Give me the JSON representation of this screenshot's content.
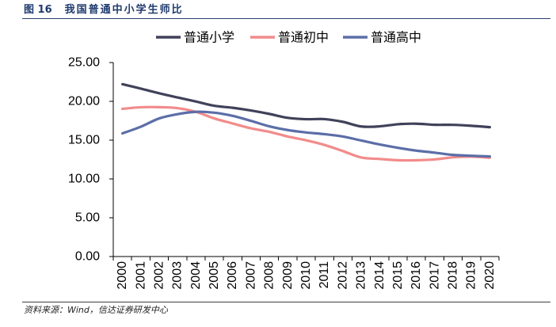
{
  "figure": {
    "number": "图 16",
    "title": "我国普通中小学生师比",
    "source": "资料来源：Wind，信达证券研发中心"
  },
  "chart_data": {
    "type": "line",
    "categories": [
      "2000",
      "2001",
      "2002",
      "2003",
      "2004",
      "2005",
      "2006",
      "2007",
      "2008",
      "2009",
      "2010",
      "2011",
      "2012",
      "2013",
      "2014",
      "2015",
      "2016",
      "2017",
      "2018",
      "2019",
      "2020"
    ],
    "series": [
      {
        "name": "普通小学",
        "color": "#40425A",
        "values": [
          22.21,
          21.64,
          21.04,
          20.5,
          19.98,
          19.43,
          19.17,
          18.82,
          18.38,
          17.88,
          17.7,
          17.71,
          17.36,
          16.76,
          16.78,
          17.05,
          17.12,
          16.98,
          16.97,
          16.85,
          16.67
        ]
      },
      {
        "name": "普通初中",
        "color": "#F28B8B",
        "values": [
          19.03,
          19.24,
          19.25,
          19.13,
          18.65,
          17.8,
          17.15,
          16.52,
          16.07,
          15.47,
          14.98,
          14.38,
          13.59,
          12.76,
          12.57,
          12.41,
          12.41,
          12.52,
          12.79,
          12.88,
          12.73
        ]
      },
      {
        "name": "普通高中",
        "color": "#5B6EA8",
        "values": [
          15.87,
          16.73,
          17.8,
          18.35,
          18.65,
          18.54,
          18.13,
          17.48,
          16.78,
          16.3,
          15.99,
          15.77,
          15.47,
          14.95,
          14.44,
          14.01,
          13.65,
          13.39,
          13.1,
          12.99,
          12.9
        ]
      }
    ],
    "ylim": [
      0,
      25
    ],
    "yticks": [
      "0.00",
      "5.00",
      "10.00",
      "15.00",
      "20.00",
      "25.00"
    ],
    "legend": "top",
    "grid": false
  }
}
